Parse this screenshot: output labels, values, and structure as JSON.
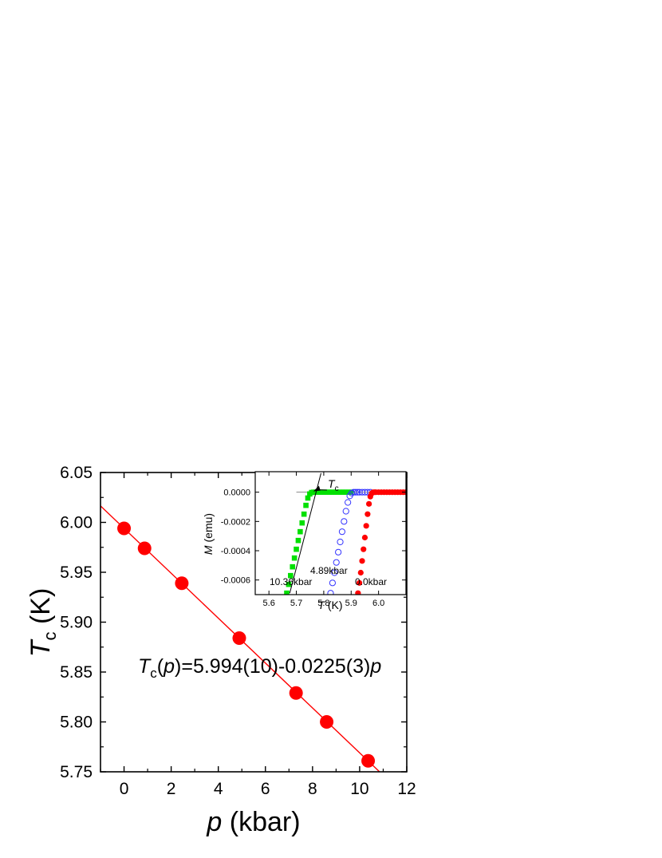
{
  "chart_data": [
    {
      "type": "scatter",
      "x": [
        0.0,
        0.87,
        2.45,
        4.89,
        7.3,
        8.6,
        10.36
      ],
      "y": [
        5.994,
        5.974,
        5.939,
        5.884,
        5.829,
        5.8,
        5.761
      ],
      "xlim": [
        -1,
        12
      ],
      "ylim": [
        5.75,
        6.05
      ],
      "xticks": [
        0,
        2,
        4,
        6,
        8,
        10,
        12
      ],
      "yticks": [
        5.75,
        5.8,
        5.85,
        5.9,
        5.95,
        6.0,
        6.05
      ],
      "xlabel_var": "p",
      "xlabel_unit": " (kbar)",
      "ylabel_var": "T",
      "ylabel_sub": "c",
      "ylabel_unit": " (K)",
      "fit": {
        "intercept": 5.994,
        "slope": -0.0225
      },
      "equation": {
        "t": "T",
        "sub": "c",
        "p1": "(",
        "pvar": "p",
        "rest": ")=5.994(10)-0.0225(3)",
        "pvar2": "p"
      },
      "marker_color": "#ff0000",
      "line_color": "#ff0000"
    },
    {
      "type": "scatter",
      "name": "inset",
      "xlim": [
        5.55,
        6.1
      ],
      "ylim": [
        -0.0007,
        0.00014
      ],
      "xticks": [
        5.6,
        5.7,
        5.8,
        5.9,
        6.0
      ],
      "xtick_labels": [
        "5.6",
        "5.7",
        "5.8",
        "5.9",
        "6.0"
      ],
      "yticks": [
        0.0,
        -0.0002,
        -0.0004,
        -0.0006
      ],
      "ytick_labels": [
        "0.0000",
        "-0.0002",
        "-0.0004",
        "-0.0006"
      ],
      "xlabel_var": "T",
      "xlabel_unit": " (K)",
      "ylabel_var": "M",
      "ylabel_unit": " (emu)",
      "tc_label": "T",
      "tc_sub": "c",
      "series": [
        {
          "name": "10.36kbar",
          "marker": "square",
          "color": "#00e000",
          "x": [
            5.665,
            5.672,
            5.679,
            5.686,
            5.693,
            5.7,
            5.707,
            5.714,
            5.721,
            5.728,
            5.735,
            5.742,
            5.749,
            5.756,
            5.763,
            5.77,
            5.78,
            5.79,
            5.8,
            5.81,
            5.82,
            5.83,
            5.84,
            5.85,
            5.86,
            5.87,
            5.88,
            5.89,
            5.9
          ],
          "y": [
            -0.00069,
            -0.00063,
            -0.00057,
            -0.00051,
            -0.00045,
            -0.00039,
            -0.00033,
            -0.00027,
            -0.00021,
            -0.00015,
            -9e-05,
            -4e-05,
            -1.2e-05,
            -2e-06,
            0.0,
            0.0,
            0.0,
            0.0,
            0.0,
            0.0,
            0.0,
            0.0,
            0.0,
            0.0,
            0.0,
            0.0,
            0.0,
            0.0,
            0.0
          ]
        },
        {
          "name": "4.89kbar",
          "marker": "circle-open",
          "color": "#3333ff",
          "x": [
            5.825,
            5.832,
            5.839,
            5.846,
            5.853,
            5.86,
            5.867,
            5.874,
            5.881,
            5.888,
            5.895,
            5.902,
            5.909,
            5.916,
            5.923,
            5.93,
            5.94,
            5.95,
            5.96,
            5.97
          ],
          "y": [
            -0.00069,
            -0.00062,
            -0.00055,
            -0.00048,
            -0.00041,
            -0.00034,
            -0.00027,
            -0.0002,
            -0.00013,
            -7e-05,
            -2.5e-05,
            -6e-06,
            0.0,
            0.0,
            0.0,
            0.0,
            0.0,
            0.0,
            0.0,
            0.0
          ]
        },
        {
          "name": "0.0kbar",
          "marker": "circle",
          "color": "#ff0000",
          "x": [
            5.925,
            5.93,
            5.935,
            5.94,
            5.945,
            5.95,
            5.955,
            5.96,
            5.965,
            5.97,
            5.975,
            5.98,
            5.985,
            5.99,
            6.0,
            6.01,
            6.02,
            6.03,
            6.04,
            6.05,
            6.06,
            6.07,
            6.08,
            6.09,
            6.1
          ],
          "y": [
            -0.00069,
            -0.00062,
            -0.00055,
            -0.00047,
            -0.00039,
            -0.00031,
            -0.00023,
            -0.00015,
            -8e-05,
            -3e-05,
            -8e-06,
            -1e-06,
            0.0,
            0.0,
            0.0,
            0.0,
            0.0,
            0.0,
            0.0,
            0.0,
            0.0,
            0.0,
            0.0,
            0.0,
            0.0
          ]
        }
      ]
    }
  ]
}
